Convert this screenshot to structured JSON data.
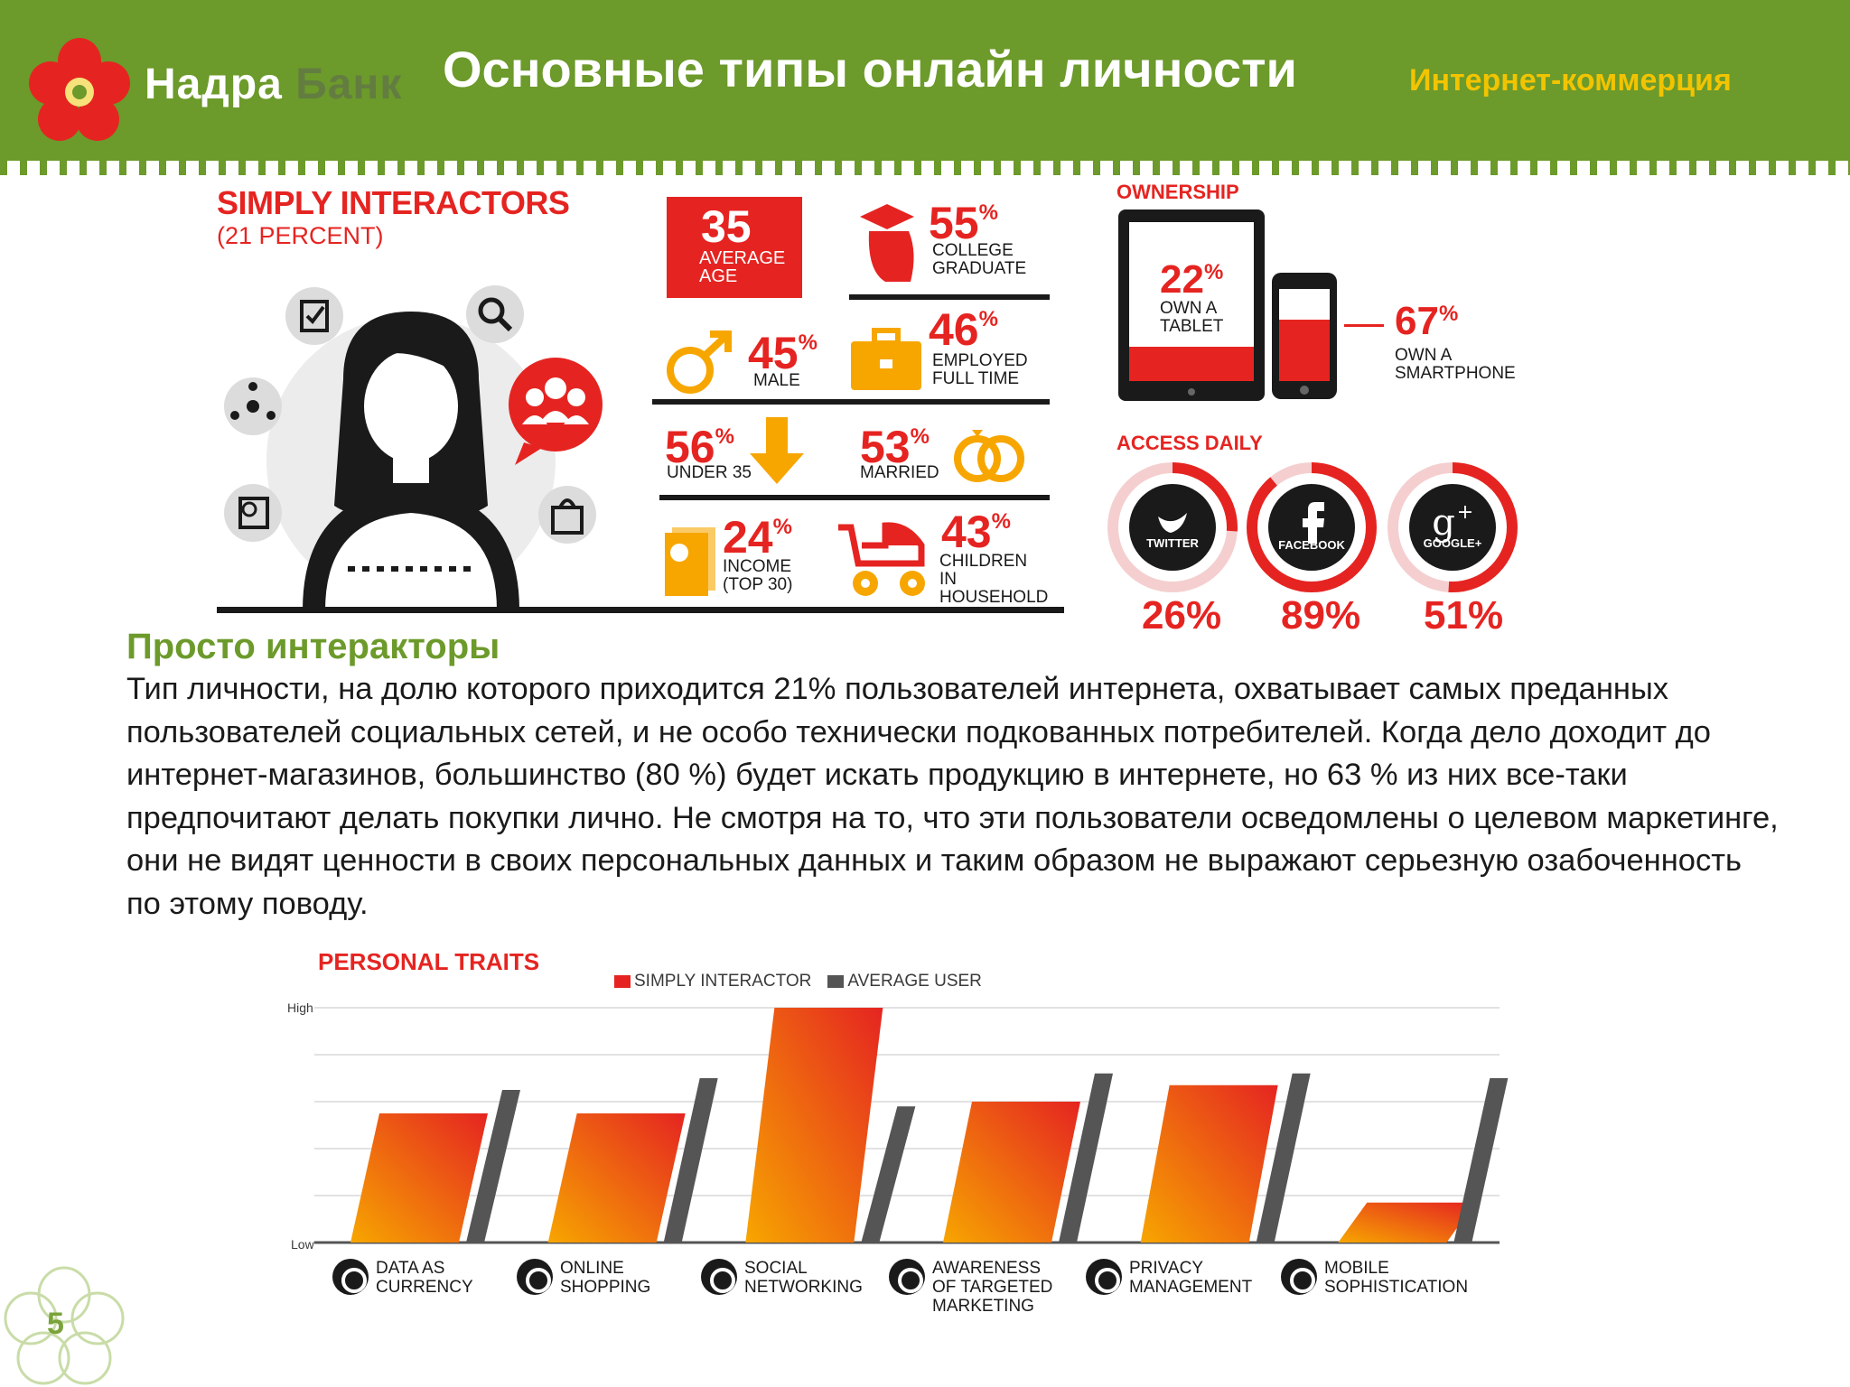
{
  "header": {
    "brand_part1": "Надра",
    "brand_part2": "Банк",
    "title": "Основные типы онлайн личности",
    "section": "Интернет-коммерция"
  },
  "colors": {
    "green": "#6c9a2b",
    "red": "#e52421",
    "orange": "#f7a600",
    "dark": "#1a1a1a",
    "gray": "#555555",
    "yellow": "#f2c400"
  },
  "segment": {
    "title": "SIMPLY INTERACTORS",
    "subtitle": "(21 PERCENT)",
    "icons": [
      "checklist-icon",
      "search-icon",
      "network-icon",
      "chat-group-icon",
      "analytics-icon",
      "shopping-bag-icon"
    ]
  },
  "demographics": {
    "age_value": "35",
    "age_label": "AVERAGE AGE",
    "college_value": "55",
    "college_label": "COLLEGE GRADUATE",
    "male_value": "45",
    "male_label": "MALE",
    "employed_value": "46",
    "employed_label": "EMPLOYED FULL TIME",
    "under35_value": "56",
    "under35_label": "UNDER 35",
    "married_value": "53",
    "married_label": "MARRIED",
    "income_value": "24",
    "income_label": "INCOME (TOP 30)",
    "children_value": "43",
    "children_label": "CHILDREN IN HOUSEHOLD",
    "pct": "%"
  },
  "ownership": {
    "title": "OWNERSHIP",
    "tablet_value": "22",
    "tablet_label": "OWN A TABLET",
    "smartphone_value": "67",
    "smartphone_label": "OWN A SMARTPHONE"
  },
  "access_daily": {
    "title": "ACCESS DAILY",
    "items": [
      {
        "label": "TWITTER",
        "value": "26%",
        "fraction": 0.26
      },
      {
        "label": "FACEBOOK",
        "value": "89%",
        "fraction": 0.89
      },
      {
        "label": "GOOGLE+",
        "value": "51%",
        "fraction": 0.51
      }
    ]
  },
  "description": {
    "title": "Просто интеракторы",
    "body": "Тип личности, на долю которого приходится 21% пользователей интернета, охватывает самых преданных пользователей социальных сетей, и не особо технически подкованных потребителей. Когда дело доходит до интернет-магазинов, большинство (80 %) будет искать продукцию в интернете, но 63 % из них все-таки предпочитают делать покупки лично. Не смотря на то, что эти пользователи осведомлены о целевом маркетинге, они не видят ценности в своих персональных данных и таким образом не выражают серьезную озабоченность по этому поводу."
  },
  "chart_data": {
    "type": "bar",
    "title": "PERSONAL TRAITS",
    "ylabel_high": "High",
    "ylabel_low": "Low",
    "ylim": [
      0,
      1
    ],
    "categories": [
      "DATA AS CURRENCY",
      "ONLINE SHOPPING",
      "SOCIAL NETWORKING",
      "AWARENESS OF TARGETED MARKETING",
      "PRIVACY MANAGEMENT",
      "MOBILE SOPHISTICATION"
    ],
    "series": [
      {
        "name": "SIMPLY INTERACTOR",
        "color": "#e52421",
        "values": [
          0.55,
          0.55,
          1.0,
          0.6,
          0.67,
          0.17
        ]
      },
      {
        "name": "AVERAGE USER",
        "color": "#555555",
        "values": [
          0.65,
          0.7,
          0.58,
          0.72,
          0.72,
          0.7
        ]
      }
    ],
    "grid": true,
    "legend": "top"
  },
  "page_number": "5"
}
